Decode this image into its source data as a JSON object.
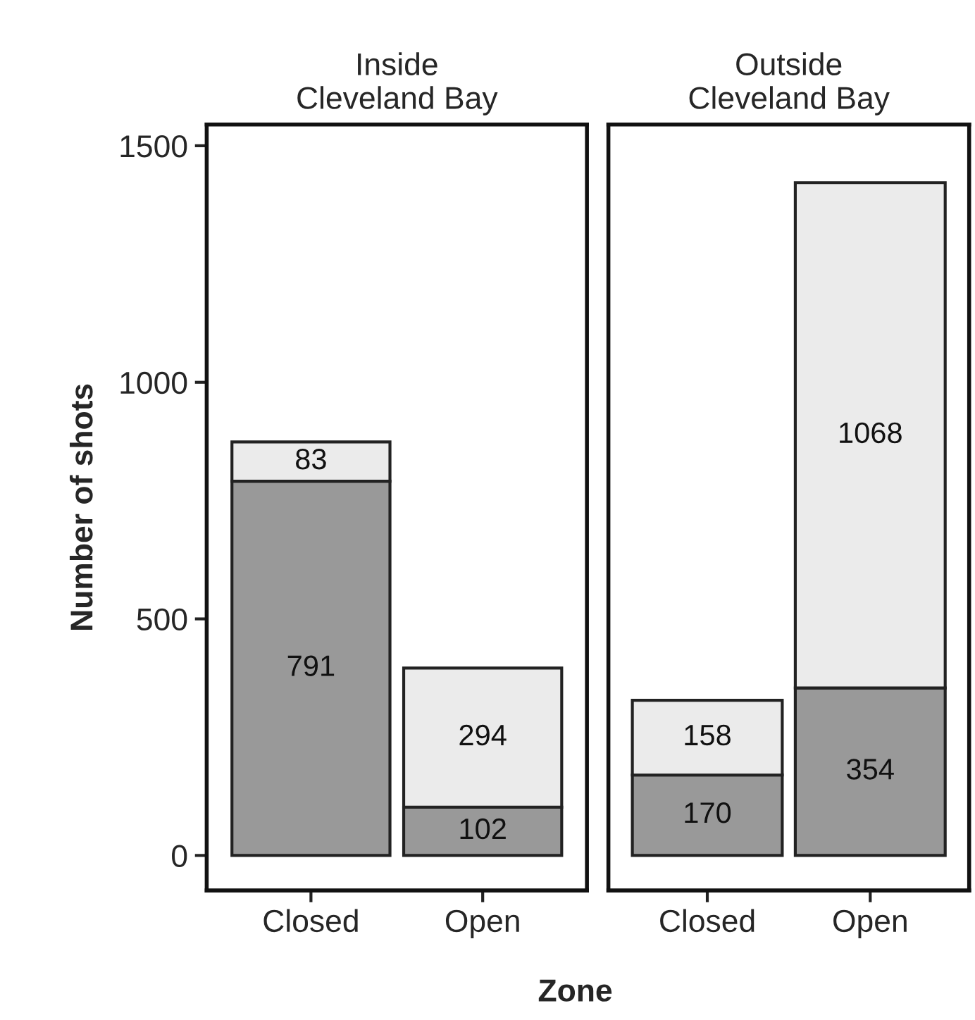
{
  "chart_data": [
    {
      "type": "bar",
      "title": "Inside\nCleveland Bay",
      "xlabel": "Zone",
      "ylabel": "Number of shots",
      "categories": [
        "Closed",
        "Open"
      ],
      "stacked": true,
      "data_labels": true,
      "ylim": [
        -74,
        1545
      ],
      "yticks": [
        0,
        500,
        1000,
        1500
      ],
      "grid": false,
      "legend": false,
      "series": [
        {
          "color": "#999999",
          "values": [
            791,
            102
          ]
        },
        {
          "color": "#ebebeb",
          "values": [
            83,
            294
          ]
        }
      ]
    },
    {
      "type": "bar",
      "title": "Outside\nCleveland Bay",
      "categories": [
        "Closed",
        "Open"
      ],
      "stacked": true,
      "data_labels": true,
      "ylim": [
        -74,
        1545
      ],
      "yticks": [
        0,
        500,
        1000,
        1500
      ],
      "tick_labels": "x",
      "grid": false,
      "legend": false,
      "series": [
        {
          "color": "#999999",
          "values": [
            170,
            354
          ]
        },
        {
          "color": "#ebebeb",
          "values": [
            158,
            1068
          ]
        }
      ]
    }
  ]
}
